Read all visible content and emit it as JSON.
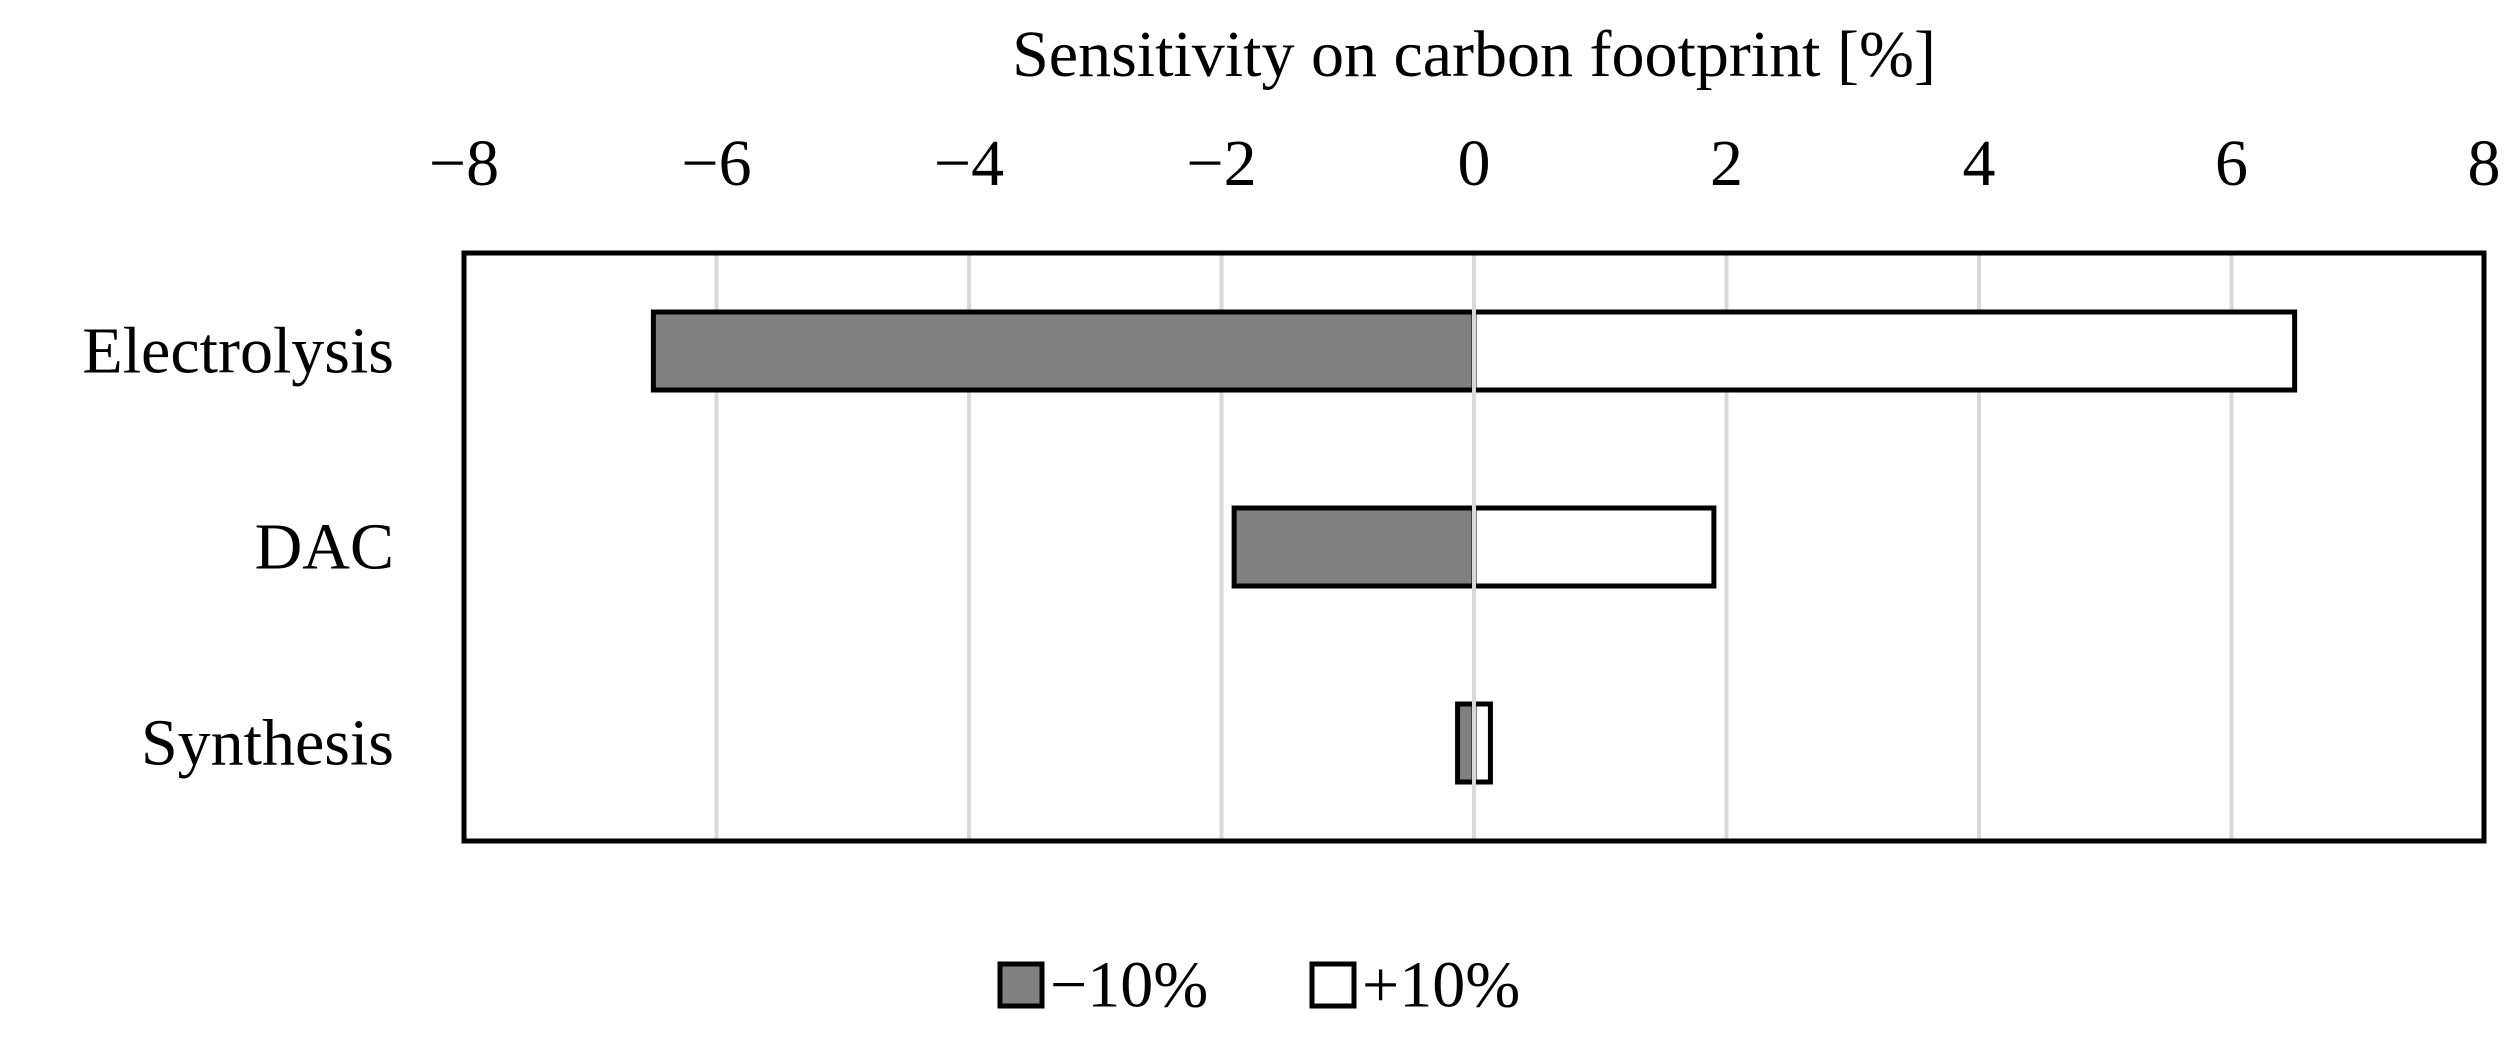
{
  "chart_data": {
    "type": "bar",
    "orientation": "horizontal",
    "title": "",
    "xlabel": "Sensitivity on  carbon footprint [%]",
    "ylabel": "",
    "xlim": [
      -8,
      8
    ],
    "x_ticks": [
      -8,
      -6,
      -4,
      -2,
      0,
      2,
      4,
      6,
      8
    ],
    "x_tick_labels": [
      "−8",
      "−6",
      "−4",
      "−2",
      "0",
      "2",
      "4",
      "6",
      "8"
    ],
    "x_axis_position": "top",
    "grid": true,
    "legend_position": "bottom-center",
    "categories": [
      "Electrolysis",
      "DAC",
      "Synthesis"
    ],
    "series": [
      {
        "name": "−10%",
        "color": "#808080",
        "values": [
          -6.5,
          -1.9,
          -0.13
        ]
      },
      {
        "name": "+10%",
        "color": "#ffffff",
        "values": [
          6.5,
          1.9,
          0.13
        ]
      }
    ]
  }
}
